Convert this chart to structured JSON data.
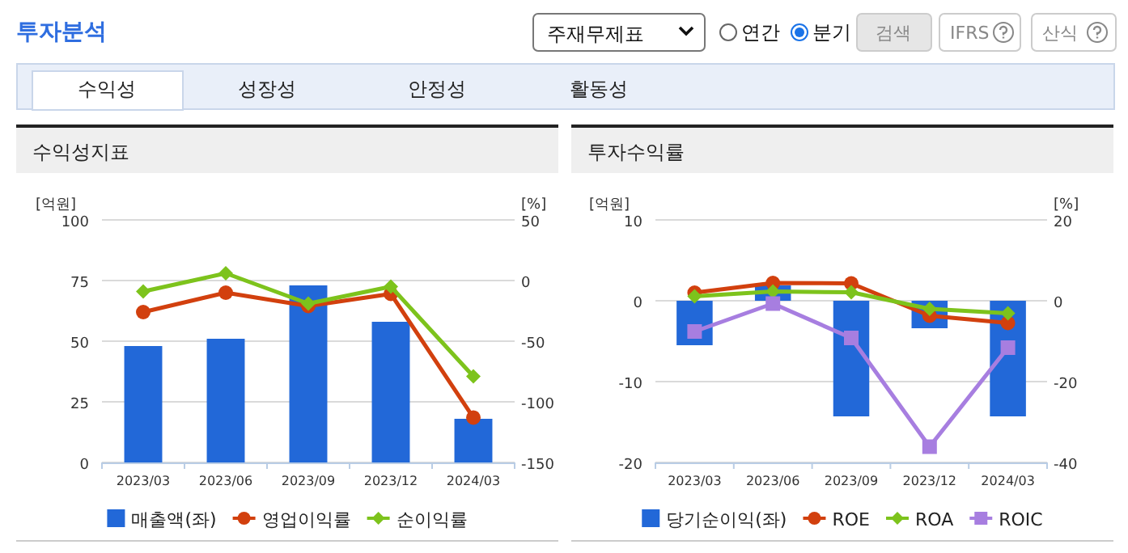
{
  "chart_data": [
    {
      "type": "other",
      "title": "투자분석",
      "annotations": [
        "주재무제표",
        "연간",
        "분기",
        "검색",
        "IFRS",
        "산식",
        "수익성",
        "성장성",
        "안정성",
        "활동성"
      ]
    },
    {
      "type": "bar",
      "title": "수익성지표",
      "ylabel": "[억원]",
      "y2label": "[%]",
      "categories": [
        "2023/03",
        "2023/06",
        "2023/09",
        "2023/12",
        "2024/03"
      ],
      "series": [
        {
          "name": "매출액(좌)",
          "type": "bar",
          "color": "#2268d8",
          "values": [
            48,
            51,
            73,
            58,
            18
          ]
        },
        {
          "name": "영업이익률",
          "type": "line",
          "axis": "y2",
          "marker": "circle",
          "color": "#d2400e",
          "values": [
            -26,
            -10,
            -21,
            -11,
            -113
          ]
        },
        {
          "name": "순이익률",
          "type": "line",
          "axis": "y2",
          "marker": "diamond",
          "color": "#7dc31c",
          "values": [
            -9,
            6,
            -19,
            -5,
            -79
          ]
        }
      ],
      "ylim": [
        0,
        100
      ],
      "yticks": [
        0,
        25,
        50,
        75,
        100
      ],
      "y2lim": [
        -150,
        50
      ],
      "y2ticks": [
        -150,
        -100,
        -50,
        0,
        50
      ],
      "grid": "y",
      "legend": "bottom"
    },
    {
      "type": "bar",
      "title": "투자수익률",
      "ylabel": "[억원]",
      "y2label": "[%]",
      "categories": [
        "2023/03",
        "2023/06",
        "2023/09",
        "2023/12",
        "2024/03"
      ],
      "series": [
        {
          "name": "당기순이익(좌)",
          "type": "bar",
          "color": "#2268d8",
          "values": [
            -5.5,
            1.9,
            -14.3,
            -3.4,
            -14.3
          ]
        },
        {
          "name": "ROE",
          "type": "line",
          "axis": "y2",
          "marker": "circle",
          "color": "#d2400e",
          "values": [
            2.0,
            4.4,
            4.3,
            -3.7,
            -5.5
          ]
        },
        {
          "name": "ROA",
          "type": "line",
          "axis": "y2",
          "marker": "diamond",
          "color": "#7dc31c",
          "values": [
            1.1,
            2.3,
            2.1,
            -2.0,
            -3.1
          ]
        },
        {
          "name": "ROIC",
          "type": "line",
          "axis": "y2",
          "marker": "square",
          "color": "#a77ee0",
          "values": [
            -7.6,
            -0.7,
            -9.2,
            -36.1,
            -11.6
          ]
        }
      ],
      "ylim": [
        -20,
        10
      ],
      "yticks": [
        -20,
        -10,
        0,
        10
      ],
      "y2lim": [
        -40,
        20
      ],
      "y2ticks": [
        -40,
        -20,
        0,
        20
      ],
      "grid": "y",
      "legend": "bottom"
    }
  ]
}
